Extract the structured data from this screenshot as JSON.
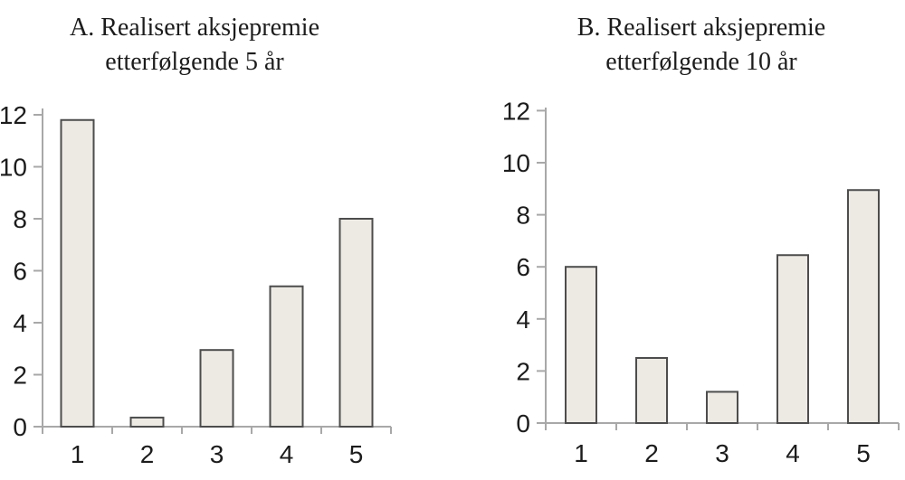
{
  "figure": {
    "background": "#ffffff",
    "text_color": "#1c1c1c"
  },
  "chart_data": [
    {
      "type": "bar",
      "panel_label": "A",
      "title": "A. Realisert aksjepremie etterfølgende 5 år",
      "title_lines": [
        "A. Realisert aksjepremie",
        "etterfølgende 5 år"
      ],
      "categories": [
        "1",
        "2",
        "3",
        "4",
        "5"
      ],
      "values": [
        11.8,
        0.35,
        2.95,
        5.4,
        8.0
      ],
      "xlabel": "",
      "ylabel": "",
      "ylim": [
        0,
        12
      ],
      "yticks": [
        0,
        2,
        4,
        6,
        8,
        10,
        12
      ],
      "grid": false,
      "legend": "none",
      "bar_fill": "#edeae4",
      "bar_border": "#4d4d4d",
      "axis_color": "#a8a8a8"
    },
    {
      "type": "bar",
      "panel_label": "B",
      "title": "B. Realisert aksjepremie etterfølgende 10 år",
      "title_lines": [
        "B. Realisert aksjepremie",
        "etterfølgende 10 år"
      ],
      "categories": [
        "1",
        "2",
        "3",
        "4",
        "5"
      ],
      "values": [
        6.0,
        2.5,
        1.2,
        6.45,
        8.95
      ],
      "xlabel": "",
      "ylabel": "",
      "ylim": [
        0,
        12
      ],
      "yticks": [
        0,
        2,
        4,
        6,
        8,
        10,
        12
      ],
      "grid": false,
      "legend": "none",
      "bar_fill": "#edeae4",
      "bar_border": "#4d4d4d",
      "axis_color": "#a8a8a8"
    }
  ]
}
